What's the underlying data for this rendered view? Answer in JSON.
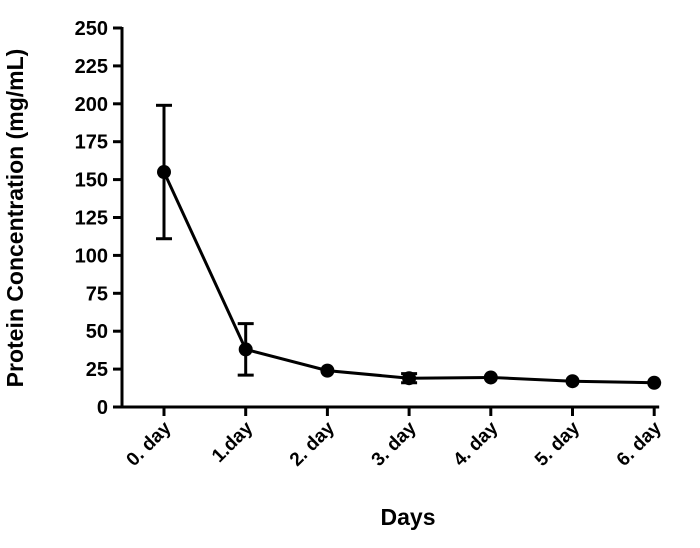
{
  "chart_data": {
    "type": "line",
    "title": "",
    "xlabel": "Days",
    "ylabel": "Protein Concentration (mg/mL)",
    "categories": [
      "0. day",
      "1.day",
      "2. day",
      "3. day",
      "4. day",
      "5. day",
      "6. day"
    ],
    "series": [
      {
        "values": [
          155,
          38,
          24,
          19,
          19.5,
          17,
          16
        ],
        "error_low": [
          111,
          21,
          24,
          16,
          19.5,
          17,
          16
        ],
        "error_high": [
          199,
          55,
          24,
          22,
          19.5,
          17,
          16
        ]
      }
    ],
    "ylim": [
      0,
      250
    ],
    "yticks": [
      "0",
      "25",
      "50",
      "75",
      "100",
      "125",
      "150",
      "175",
      "200",
      "225",
      "250"
    ],
    "grid": false,
    "legend": "none",
    "colors": {
      "line": "#000000",
      "marker": "#000000"
    }
  }
}
